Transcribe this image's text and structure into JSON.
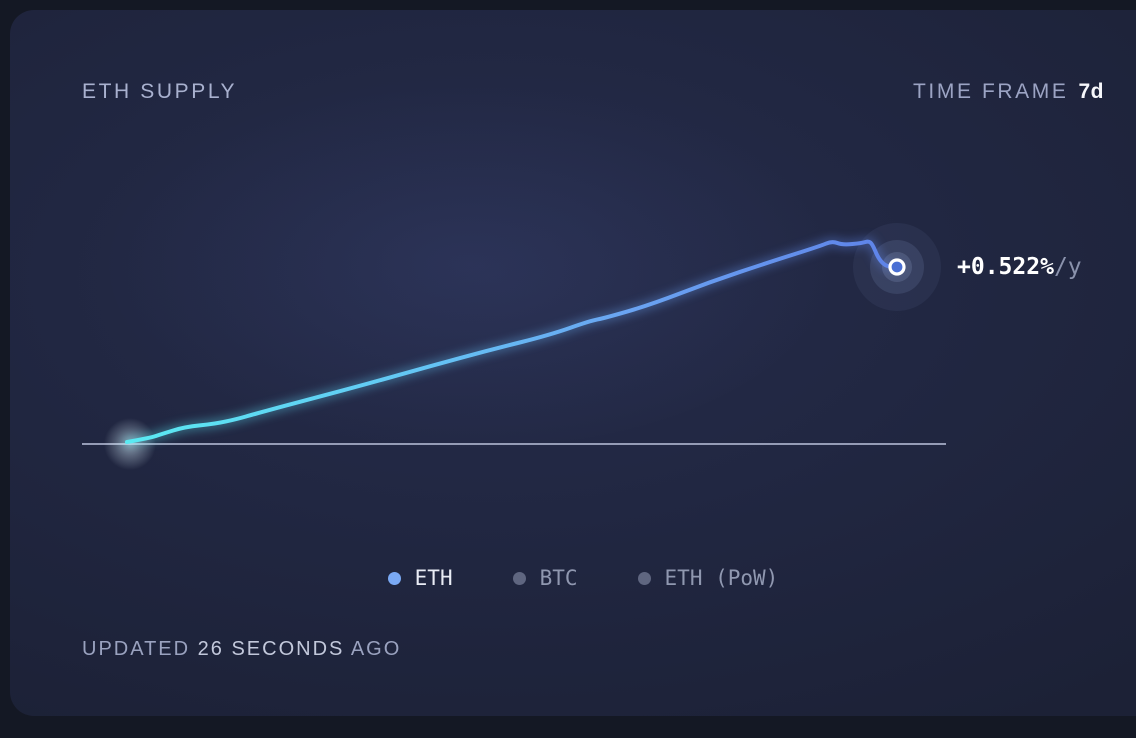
{
  "card": {
    "title": "ETH SUPPLY",
    "time_frame": {
      "label": "TIME FRAME",
      "value": "7d"
    },
    "updated": {
      "prefix": "UPDATED",
      "highlight": "26 SECONDS",
      "suffix": "AGO"
    }
  },
  "annotation": {
    "value": "+0.522%",
    "unit": "/y"
  },
  "legend": {
    "items": [
      {
        "label": "ETH",
        "active": true,
        "dot_color": "#7aa9f4",
        "text_color": "#e9ecf5"
      },
      {
        "label": "BTC",
        "active": false,
        "dot_color": "#5f6680",
        "text_color": "#9098b0"
      },
      {
        "label": "ETH (PoW)",
        "active": false,
        "dot_color": "#5f6680",
        "text_color": "#9098b0"
      }
    ]
  },
  "chart_data": {
    "type": "line",
    "title": "ETH SUPPLY",
    "time_frame": "7d",
    "annotation": "+0.522%/y",
    "legend_position": "bottom-center",
    "x_axis": {
      "label": "",
      "range_description": "last 7 days",
      "ticks_visible": false
    },
    "y_axis": {
      "label": "",
      "ticks_visible": false,
      "baseline_shown": true
    },
    "series": [
      {
        "name": "ETH",
        "visible": true,
        "trend_label": "+0.522%/y",
        "color_gradient": [
          "#5aeaf2",
          "#63c9f4",
          "#6aa4f2",
          "#5e82e8"
        ],
        "points_normalized": [
          [
            0.0,
            0.01
          ],
          [
            0.03,
            0.03
          ],
          [
            0.045,
            0.049
          ],
          [
            0.075,
            0.084
          ],
          [
            0.114,
            0.099
          ],
          [
            0.143,
            0.123
          ],
          [
            0.166,
            0.148
          ],
          [
            0.238,
            0.222
          ],
          [
            0.316,
            0.3
          ],
          [
            0.394,
            0.384
          ],
          [
            0.471,
            0.463
          ],
          [
            0.549,
            0.537
          ],
          [
            0.601,
            0.606
          ],
          [
            0.621,
            0.621
          ],
          [
            0.679,
            0.685
          ],
          [
            0.757,
            0.798
          ],
          [
            0.835,
            0.897
          ],
          [
            0.9,
            0.975
          ],
          [
            0.916,
            1.0
          ],
          [
            0.929,
            0.98
          ],
          [
            0.955,
            0.99
          ],
          [
            0.963,
            1.0
          ],
          [
            0.968,
            0.985
          ],
          [
            0.975,
            0.921
          ],
          [
            0.982,
            0.887
          ],
          [
            0.99,
            0.872
          ],
          [
            1.0,
            0.872
          ]
        ]
      },
      {
        "name": "BTC",
        "visible": false
      },
      {
        "name": "ETH (PoW)",
        "visible": false
      }
    ]
  },
  "colors": {
    "page_bg": "#141824",
    "card_bg": "#212742",
    "muted_text": "#9ca4c4",
    "bright_text": "#f7f8fc",
    "baseline": "#959cb6",
    "accent_line_start": "#5aeaf2",
    "accent_line_end": "#5e82e8",
    "marker_fill": "#4a6fd4"
  }
}
